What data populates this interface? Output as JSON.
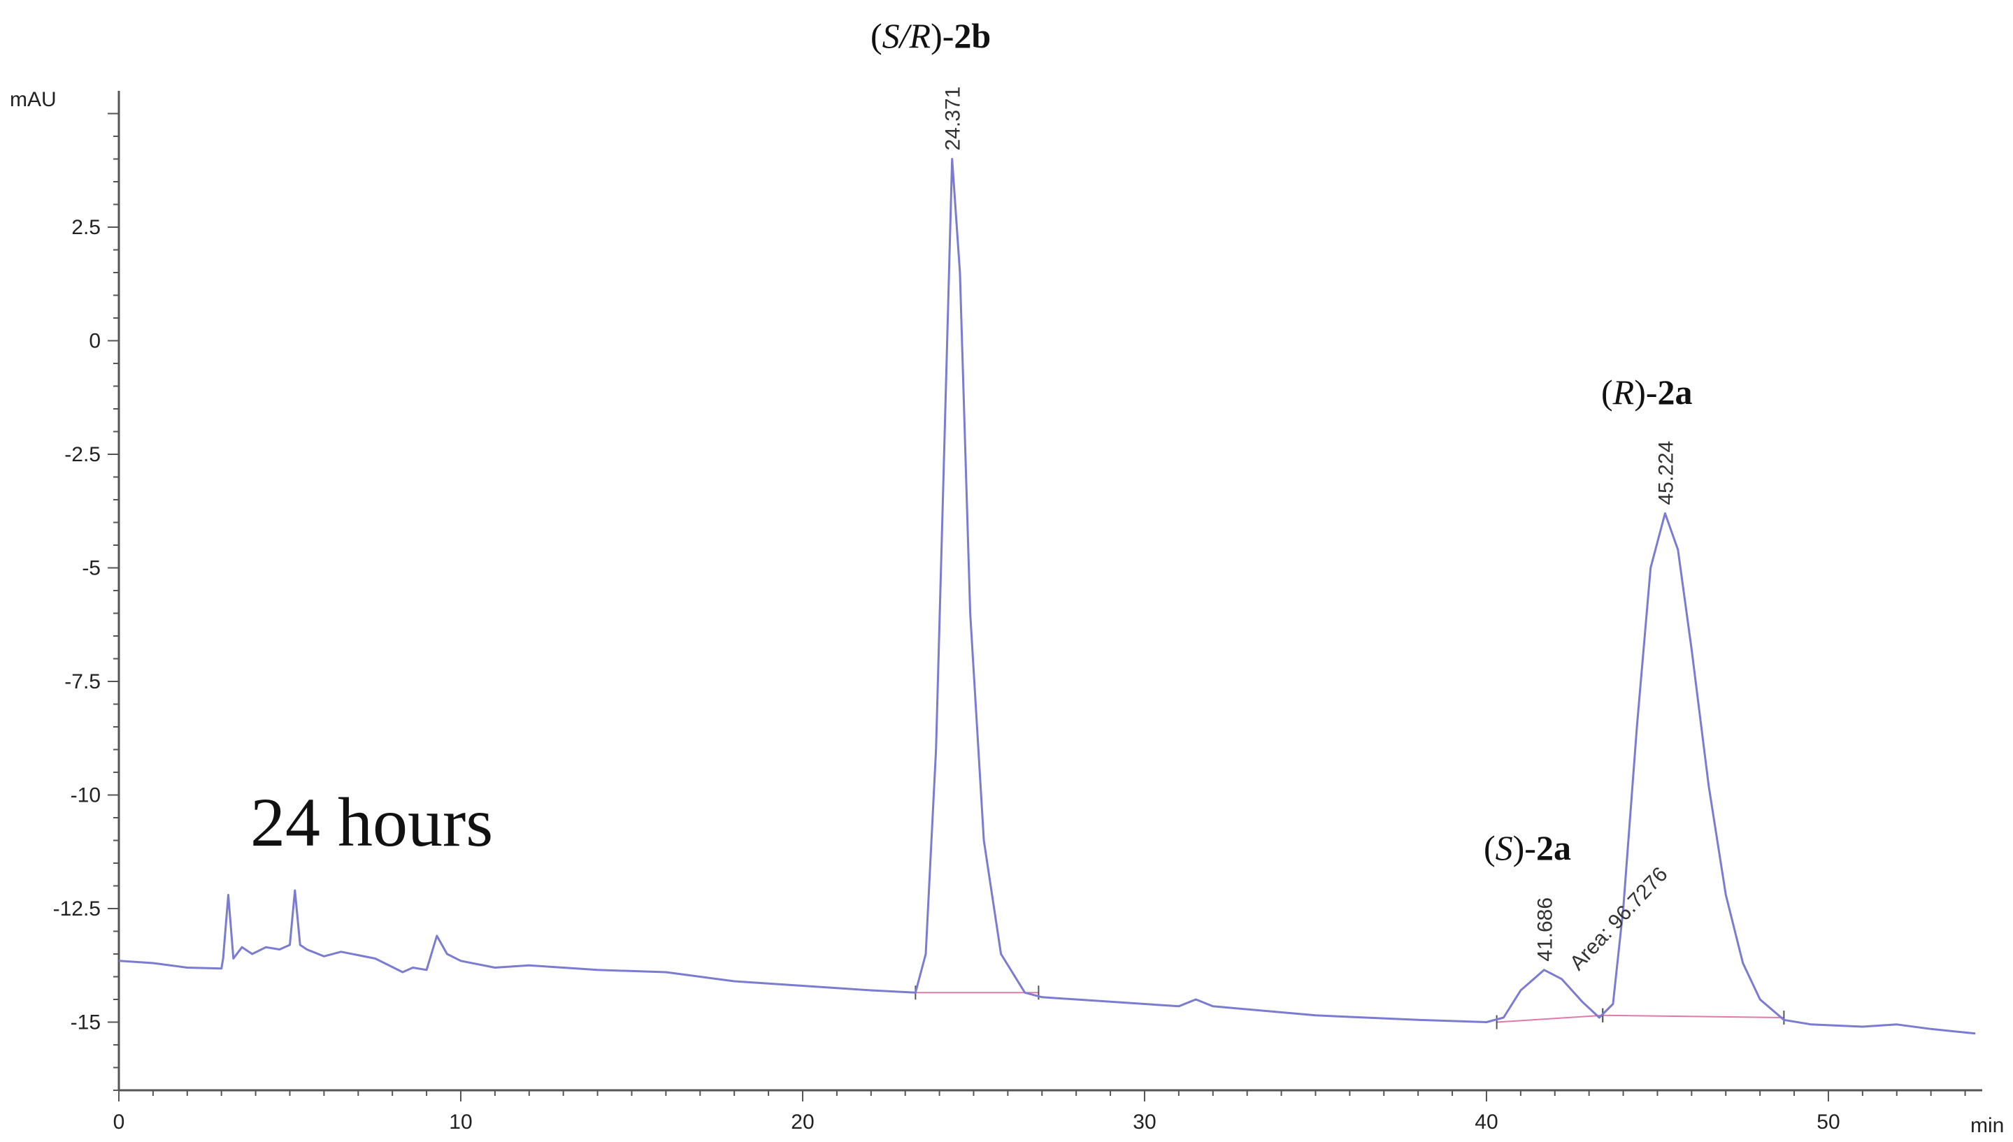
{
  "chart_data": {
    "type": "line",
    "xunit": "min",
    "yunit": "mAU",
    "xlim": [
      0,
      54.5
    ],
    "ylim": [
      -16.5,
      5.5
    ],
    "xticks": [
      0,
      10,
      20,
      30,
      40,
      50
    ],
    "yticks": [
      2.5,
      0,
      -2.5,
      -5,
      -7.5,
      -10,
      -12.5,
      -15
    ],
    "xtick_labels": [
      "0",
      "10",
      "20",
      "30",
      "40",
      "50"
    ],
    "ytick_labels": [
      "2.5",
      "0",
      "-2.5",
      "-5",
      "-7.5",
      "-10",
      "-12.5",
      "-15"
    ],
    "grid": false,
    "colors": {
      "trace": "#7b7bd0",
      "baseline": "#e07aa8",
      "axis": "#555555"
    },
    "series": [
      {
        "values": [
          [
            0,
            -13.65
          ],
          [
            1,
            -13.7
          ],
          [
            2,
            -13.8
          ],
          [
            3,
            -13.82
          ],
          [
            3.05,
            -13.6
          ],
          [
            3.2,
            -12.2
          ],
          [
            3.35,
            -13.6
          ],
          [
            3.6,
            -13.35
          ],
          [
            3.9,
            -13.5
          ],
          [
            4.3,
            -13.35
          ],
          [
            4.7,
            -13.4
          ],
          [
            5.0,
            -13.3
          ],
          [
            5.15,
            -12.1
          ],
          [
            5.3,
            -13.3
          ],
          [
            5.5,
            -13.4
          ],
          [
            6.0,
            -13.55
          ],
          [
            6.5,
            -13.45
          ],
          [
            7.5,
            -13.6
          ],
          [
            8.3,
            -13.9
          ],
          [
            8.6,
            -13.8
          ],
          [
            9.0,
            -13.85
          ],
          [
            9.3,
            -13.1
          ],
          [
            9.6,
            -13.5
          ],
          [
            10.0,
            -13.65
          ],
          [
            11.0,
            -13.8
          ],
          [
            12.0,
            -13.75
          ],
          [
            14.0,
            -13.85
          ],
          [
            16.0,
            -13.9
          ],
          [
            18.0,
            -14.1
          ],
          [
            20.0,
            -14.2
          ],
          [
            22.0,
            -14.3
          ],
          [
            23.3,
            -14.35
          ],
          [
            23.6,
            -13.5
          ],
          [
            23.9,
            -9.0
          ],
          [
            24.1,
            -3.5
          ],
          [
            24.371,
            4.0
          ],
          [
            24.6,
            1.5
          ],
          [
            24.9,
            -6.0
          ],
          [
            25.3,
            -11.0
          ],
          [
            25.8,
            -13.5
          ],
          [
            26.5,
            -14.35
          ],
          [
            27.0,
            -14.45
          ],
          [
            29.0,
            -14.55
          ],
          [
            31.0,
            -14.65
          ],
          [
            31.5,
            -14.5
          ],
          [
            32.0,
            -14.65
          ],
          [
            35.0,
            -14.85
          ],
          [
            38.0,
            -14.95
          ],
          [
            40.0,
            -15.0
          ],
          [
            40.5,
            -14.9
          ],
          [
            41.0,
            -14.3
          ],
          [
            41.686,
            -13.85
          ],
          [
            42.2,
            -14.05
          ],
          [
            42.8,
            -14.55
          ],
          [
            43.3,
            -14.9
          ],
          [
            43.7,
            -14.6
          ],
          [
            44.0,
            -12.5
          ],
          [
            44.4,
            -8.5
          ],
          [
            44.8,
            -5.0
          ],
          [
            45.224,
            -3.8
          ],
          [
            45.6,
            -4.6
          ],
          [
            46.0,
            -6.8
          ],
          [
            46.5,
            -9.8
          ],
          [
            47.0,
            -12.2
          ],
          [
            47.5,
            -13.7
          ],
          [
            48.0,
            -14.5
          ],
          [
            48.7,
            -14.95
          ],
          [
            49.5,
            -15.05
          ],
          [
            51.0,
            -15.1
          ],
          [
            52.0,
            -15.05
          ],
          [
            53.0,
            -15.15
          ],
          [
            54.3,
            -15.25
          ]
        ]
      }
    ],
    "baselines": [
      [
        [
          23.3,
          -14.35
        ],
        [
          26.9,
          -14.35
        ]
      ],
      [
        [
          40.3,
          -15.0
        ],
        [
          43.4,
          -14.85
        ]
      ],
      [
        [
          43.4,
          -14.85
        ],
        [
          48.7,
          -14.9
        ]
      ]
    ],
    "peaks": [
      {
        "x": 24.371,
        "label": "24.371"
      },
      {
        "x": 41.686,
        "label": "41.686"
      },
      {
        "x": 45.224,
        "label": "45.224"
      }
    ],
    "area_label": "Area: 96.7276",
    "compound_labels": [
      {
        "parts": [
          "(",
          "S/R",
          ")-",
          "2b"
        ]
      },
      {
        "parts": [
          "(",
          "R",
          ")-",
          "2a"
        ]
      },
      {
        "parts": [
          "(",
          "S",
          ")-",
          "2a"
        ]
      }
    ],
    "annotation": "24 hours"
  }
}
